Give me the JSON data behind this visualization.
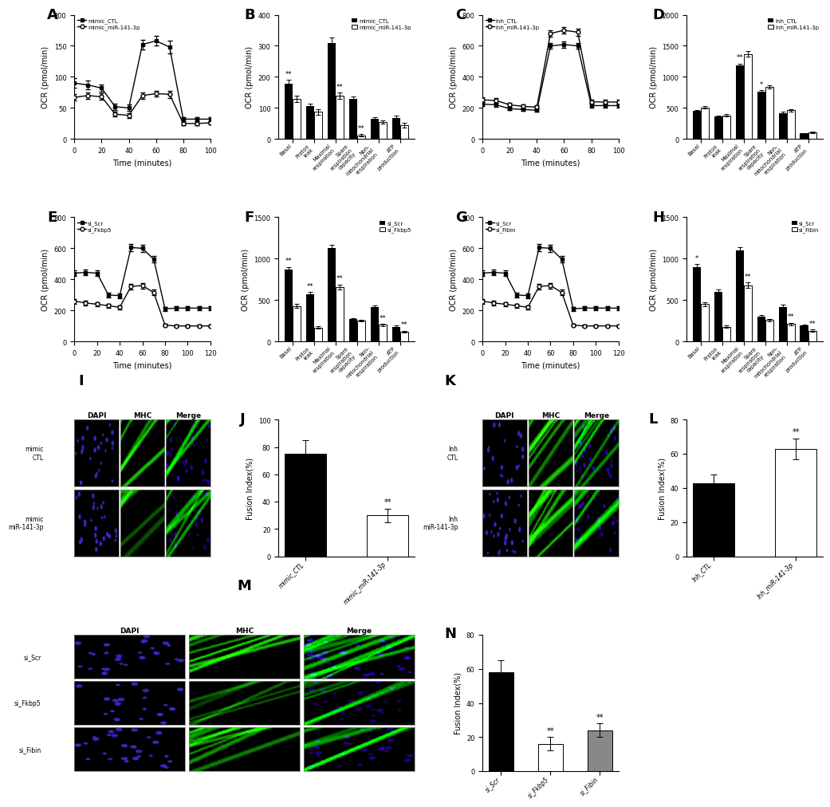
{
  "panelA": {
    "xlabel": "Time (minutes)",
    "ylabel": "OCR (pmol/min)",
    "ylim": [
      0,
      200
    ],
    "yticks": [
      0,
      50,
      100,
      150,
      200
    ],
    "xlim": [
      0,
      100
    ],
    "xticks": [
      0,
      20,
      40,
      60,
      80,
      100
    ],
    "legend": [
      "mimic_CTL",
      "mimic_miR-141-3p"
    ],
    "x_ctl": [
      0,
      10,
      20,
      30,
      40,
      50,
      60,
      70,
      80,
      90,
      100
    ],
    "y_ctl": [
      90,
      87,
      82,
      52,
      50,
      152,
      158,
      148,
      32,
      32,
      32
    ],
    "y_ctl_err": [
      8,
      7,
      6,
      5,
      5,
      8,
      8,
      10,
      3,
      3,
      3
    ],
    "x_mir": [
      0,
      10,
      20,
      30,
      40,
      50,
      60,
      70,
      80,
      90,
      100
    ],
    "y_mir": [
      67,
      70,
      68,
      40,
      38,
      70,
      73,
      72,
      25,
      25,
      26
    ],
    "y_mir_err": [
      5,
      5,
      5,
      4,
      4,
      5,
      5,
      6,
      3,
      3,
      3
    ]
  },
  "panelB": {
    "ylabel": "OCR (pmol/min)",
    "ylim": [
      0,
      400
    ],
    "yticks": [
      0,
      100,
      200,
      300,
      400
    ],
    "categories": [
      "Basal",
      "Proton\nleak",
      "Maximal\nrespiration",
      "Spare\nrespiration\ncapacity",
      "Non-\nmitochondrial\nrespiration",
      "ATP\nproduction"
    ],
    "legend": [
      "mimic_CTL",
      "mimic_miR-141-3p"
    ],
    "ctl_vals": [
      178,
      107,
      308,
      128,
      65,
      67
    ],
    "ctl_err": [
      12,
      8,
      18,
      10,
      5,
      8
    ],
    "mir_vals": [
      130,
      87,
      140,
      12,
      55,
      45
    ],
    "mir_err": [
      10,
      8,
      10,
      3,
      5,
      8
    ],
    "sig_ctl": [
      "**",
      "",
      "",
      "",
      "",
      ""
    ],
    "sig_mir": [
      "",
      "",
      "**",
      "**",
      "",
      ""
    ]
  },
  "panelC": {
    "xlabel": "Time (minutes)",
    "ylabel": "OCR (pmol/min)",
    "ylim": [
      0,
      800
    ],
    "yticks": [
      0,
      200,
      400,
      600,
      800
    ],
    "xlim": [
      0,
      100
    ],
    "xticks": [
      0,
      20,
      40,
      60,
      80,
      100
    ],
    "legend": [
      "Inh_CTL",
      "Inh_miR-141-3p"
    ],
    "x_ctl": [
      0,
      10,
      20,
      30,
      40,
      50,
      60,
      70,
      80,
      90,
      100
    ],
    "y_ctl": [
      225,
      220,
      195,
      190,
      185,
      600,
      608,
      600,
      215,
      215,
      215
    ],
    "y_ctl_err": [
      12,
      12,
      10,
      10,
      10,
      20,
      20,
      20,
      12,
      12,
      12
    ],
    "x_mir": [
      0,
      10,
      20,
      30,
      40,
      50,
      60,
      70,
      80,
      90,
      100
    ],
    "y_mir": [
      252,
      248,
      220,
      210,
      205,
      680,
      700,
      688,
      240,
      238,
      238
    ],
    "y_mir_err": [
      15,
      15,
      12,
      12,
      12,
      22,
      22,
      22,
      15,
      15,
      15
    ]
  },
  "panelD": {
    "ylabel": "OCR (pmol/min)",
    "ylim": [
      0,
      2000
    ],
    "yticks": [
      0,
      500,
      1000,
      1500,
      2000
    ],
    "categories": [
      "Basal",
      "Proton\nleak",
      "Maximal\nrespiration",
      "Spare\nrespiration\ncapacity",
      "Non-\nmitochondrial\nrespiration",
      "ATP\nproduction"
    ],
    "legend": [
      "Inh_CTL",
      "Inh_miR-141-3p"
    ],
    "ctl_vals": [
      450,
      360,
      1180,
      760,
      420,
      90
    ],
    "ctl_err": [
      20,
      20,
      35,
      25,
      20,
      8
    ],
    "mir_vals": [
      510,
      380,
      1370,
      840,
      460,
      105
    ],
    "mir_err": [
      22,
      22,
      40,
      28,
      22,
      10
    ],
    "sig_ctl": [
      "",
      "",
      "**",
      "*",
      "",
      ""
    ],
    "sig_mir": [
      "",
      "",
      "",
      "",
      "",
      ""
    ]
  },
  "panelE": {
    "xlabel": "Time (minutes)",
    "ylabel": "OCR (pmol/min)",
    "ylim": [
      0,
      800
    ],
    "yticks": [
      0,
      200,
      400,
      600,
      800
    ],
    "xlim": [
      0,
      120
    ],
    "xticks": [
      0,
      20,
      40,
      60,
      80,
      100,
      120
    ],
    "legend": [
      "si_Scr",
      "si_Fkbp5"
    ],
    "x_ctl": [
      0,
      10,
      20,
      30,
      40,
      50,
      60,
      70,
      80,
      90,
      100,
      110,
      120
    ],
    "y_ctl": [
      440,
      445,
      440,
      300,
      295,
      605,
      600,
      530,
      210,
      215,
      215,
      215,
      215
    ],
    "y_ctl_err": [
      20,
      20,
      20,
      15,
      15,
      22,
      22,
      22,
      12,
      12,
      12,
      12,
      12
    ],
    "x_mir": [
      0,
      10,
      20,
      30,
      40,
      50,
      60,
      70,
      80,
      90,
      100,
      110,
      120
    ],
    "y_mir": [
      260,
      248,
      240,
      230,
      220,
      355,
      360,
      315,
      105,
      100,
      100,
      100,
      100
    ],
    "y_mir_err": [
      15,
      15,
      15,
      12,
      12,
      18,
      18,
      18,
      8,
      8,
      8,
      8,
      8
    ]
  },
  "panelF": {
    "ylabel": "OCR (pmol/min)",
    "ylim": [
      0,
      1500
    ],
    "yticks": [
      0,
      500,
      1000,
      1500
    ],
    "categories": [
      "Basal",
      "Proton\nleak",
      "Maximal\nrespiration",
      "Spare\nrespiration\ncapacity",
      "Non-\nmitochondrial\nrespiration",
      "ATP\nproduction"
    ],
    "legend": [
      "si_Scr",
      "si_Fkbp5"
    ],
    "ctl_vals": [
      870,
      570,
      1130,
      270,
      420,
      180
    ],
    "ctl_err": [
      30,
      25,
      40,
      15,
      20,
      12
    ],
    "mir_vals": [
      430,
      170,
      660,
      250,
      200,
      120
    ],
    "mir_err": [
      20,
      12,
      30,
      12,
      15,
      10
    ],
    "sig_ctl": [
      "**",
      "**",
      "",
      "",
      "",
      ""
    ],
    "sig_mir": [
      "",
      "",
      "**",
      "",
      "**",
      "**"
    ]
  },
  "panelG": {
    "xlabel": "Time (minutes)",
    "ylabel": "OCR (pmol/min)",
    "ylim": [
      0,
      800
    ],
    "yticks": [
      0,
      200,
      400,
      600,
      800
    ],
    "xlim": [
      0,
      120
    ],
    "xticks": [
      0,
      20,
      40,
      60,
      80,
      100,
      120
    ],
    "legend": [
      "si_Scr",
      "si_Fibin"
    ],
    "x_ctl": [
      0,
      10,
      20,
      30,
      40,
      50,
      60,
      70,
      80,
      90,
      100,
      110,
      120
    ],
    "y_ctl": [
      440,
      445,
      440,
      300,
      295,
      605,
      600,
      530,
      210,
      215,
      215,
      215,
      215
    ],
    "y_ctl_err": [
      20,
      20,
      20,
      15,
      15,
      22,
      22,
      22,
      12,
      12,
      12,
      12,
      12
    ],
    "x_mir": [
      0,
      10,
      20,
      30,
      40,
      50,
      60,
      70,
      80,
      90,
      100,
      110,
      120
    ],
    "y_mir": [
      260,
      248,
      240,
      230,
      220,
      355,
      360,
      315,
      105,
      100,
      100,
      100,
      100
    ],
    "y_mir_err": [
      15,
      15,
      15,
      12,
      12,
      18,
      18,
      18,
      8,
      8,
      8,
      8,
      8
    ]
  },
  "panelH": {
    "ylabel": "OCR (pmol/min)",
    "ylim": [
      0,
      1500
    ],
    "yticks": [
      0,
      500,
      1000,
      1500
    ],
    "categories": [
      "Basal",
      "Proton\nleak",
      "Maximal\nrespiration",
      "Spare\nrespiration\ncapacity",
      "Non-\nmitochondrial\nrespiration",
      "ATP\nproduction"
    ],
    "legend": [
      "si_Scr",
      "si_Fibin"
    ],
    "ctl_vals": [
      900,
      600,
      1100,
      300,
      420,
      190
    ],
    "ctl_err": [
      35,
      28,
      42,
      18,
      22,
      14
    ],
    "mir_vals": [
      450,
      180,
      680,
      260,
      210,
      130
    ],
    "mir_err": [
      22,
      14,
      32,
      14,
      16,
      12
    ],
    "sig_ctl": [
      "*",
      "",
      "",
      "",
      "",
      ""
    ],
    "sig_mir": [
      "",
      "",
      "**",
      "",
      "**",
      "**"
    ]
  },
  "panelJ": {
    "ylabel": "Fusion Index(%)",
    "ylim": [
      0,
      100
    ],
    "yticks": [
      0,
      20,
      40,
      60,
      80,
      100
    ],
    "categories": [
      "mimic_CTL",
      "mimic_miR-141-3p"
    ],
    "vals": [
      75,
      30
    ],
    "err": [
      10,
      5
    ],
    "colors": [
      "#000000",
      "#ffffff"
    ],
    "sig": [
      "",
      "**"
    ]
  },
  "panelL": {
    "ylabel": "Fusion Index(%)",
    "ylim": [
      0,
      80
    ],
    "yticks": [
      0,
      20,
      40,
      60,
      80
    ],
    "categories": [
      "Inh_CTL",
      "Inh_miR-141-3p"
    ],
    "vals": [
      43,
      63
    ],
    "err": [
      5,
      6
    ],
    "colors": [
      "#000000",
      "#ffffff"
    ],
    "sig": [
      "",
      "**"
    ]
  },
  "panelN": {
    "ylabel": "Fusion Index(%)",
    "ylim": [
      0,
      80
    ],
    "yticks": [
      0,
      20,
      40,
      60,
      80
    ],
    "categories": [
      "si_Scr",
      "si_Fkbp5",
      "si_Fibin"
    ],
    "vals": [
      58,
      16,
      24
    ],
    "err": [
      7,
      4,
      4
    ],
    "colors": [
      "#000000",
      "#ffffff",
      "#888888"
    ],
    "sig": [
      "",
      "**",
      "**"
    ]
  }
}
